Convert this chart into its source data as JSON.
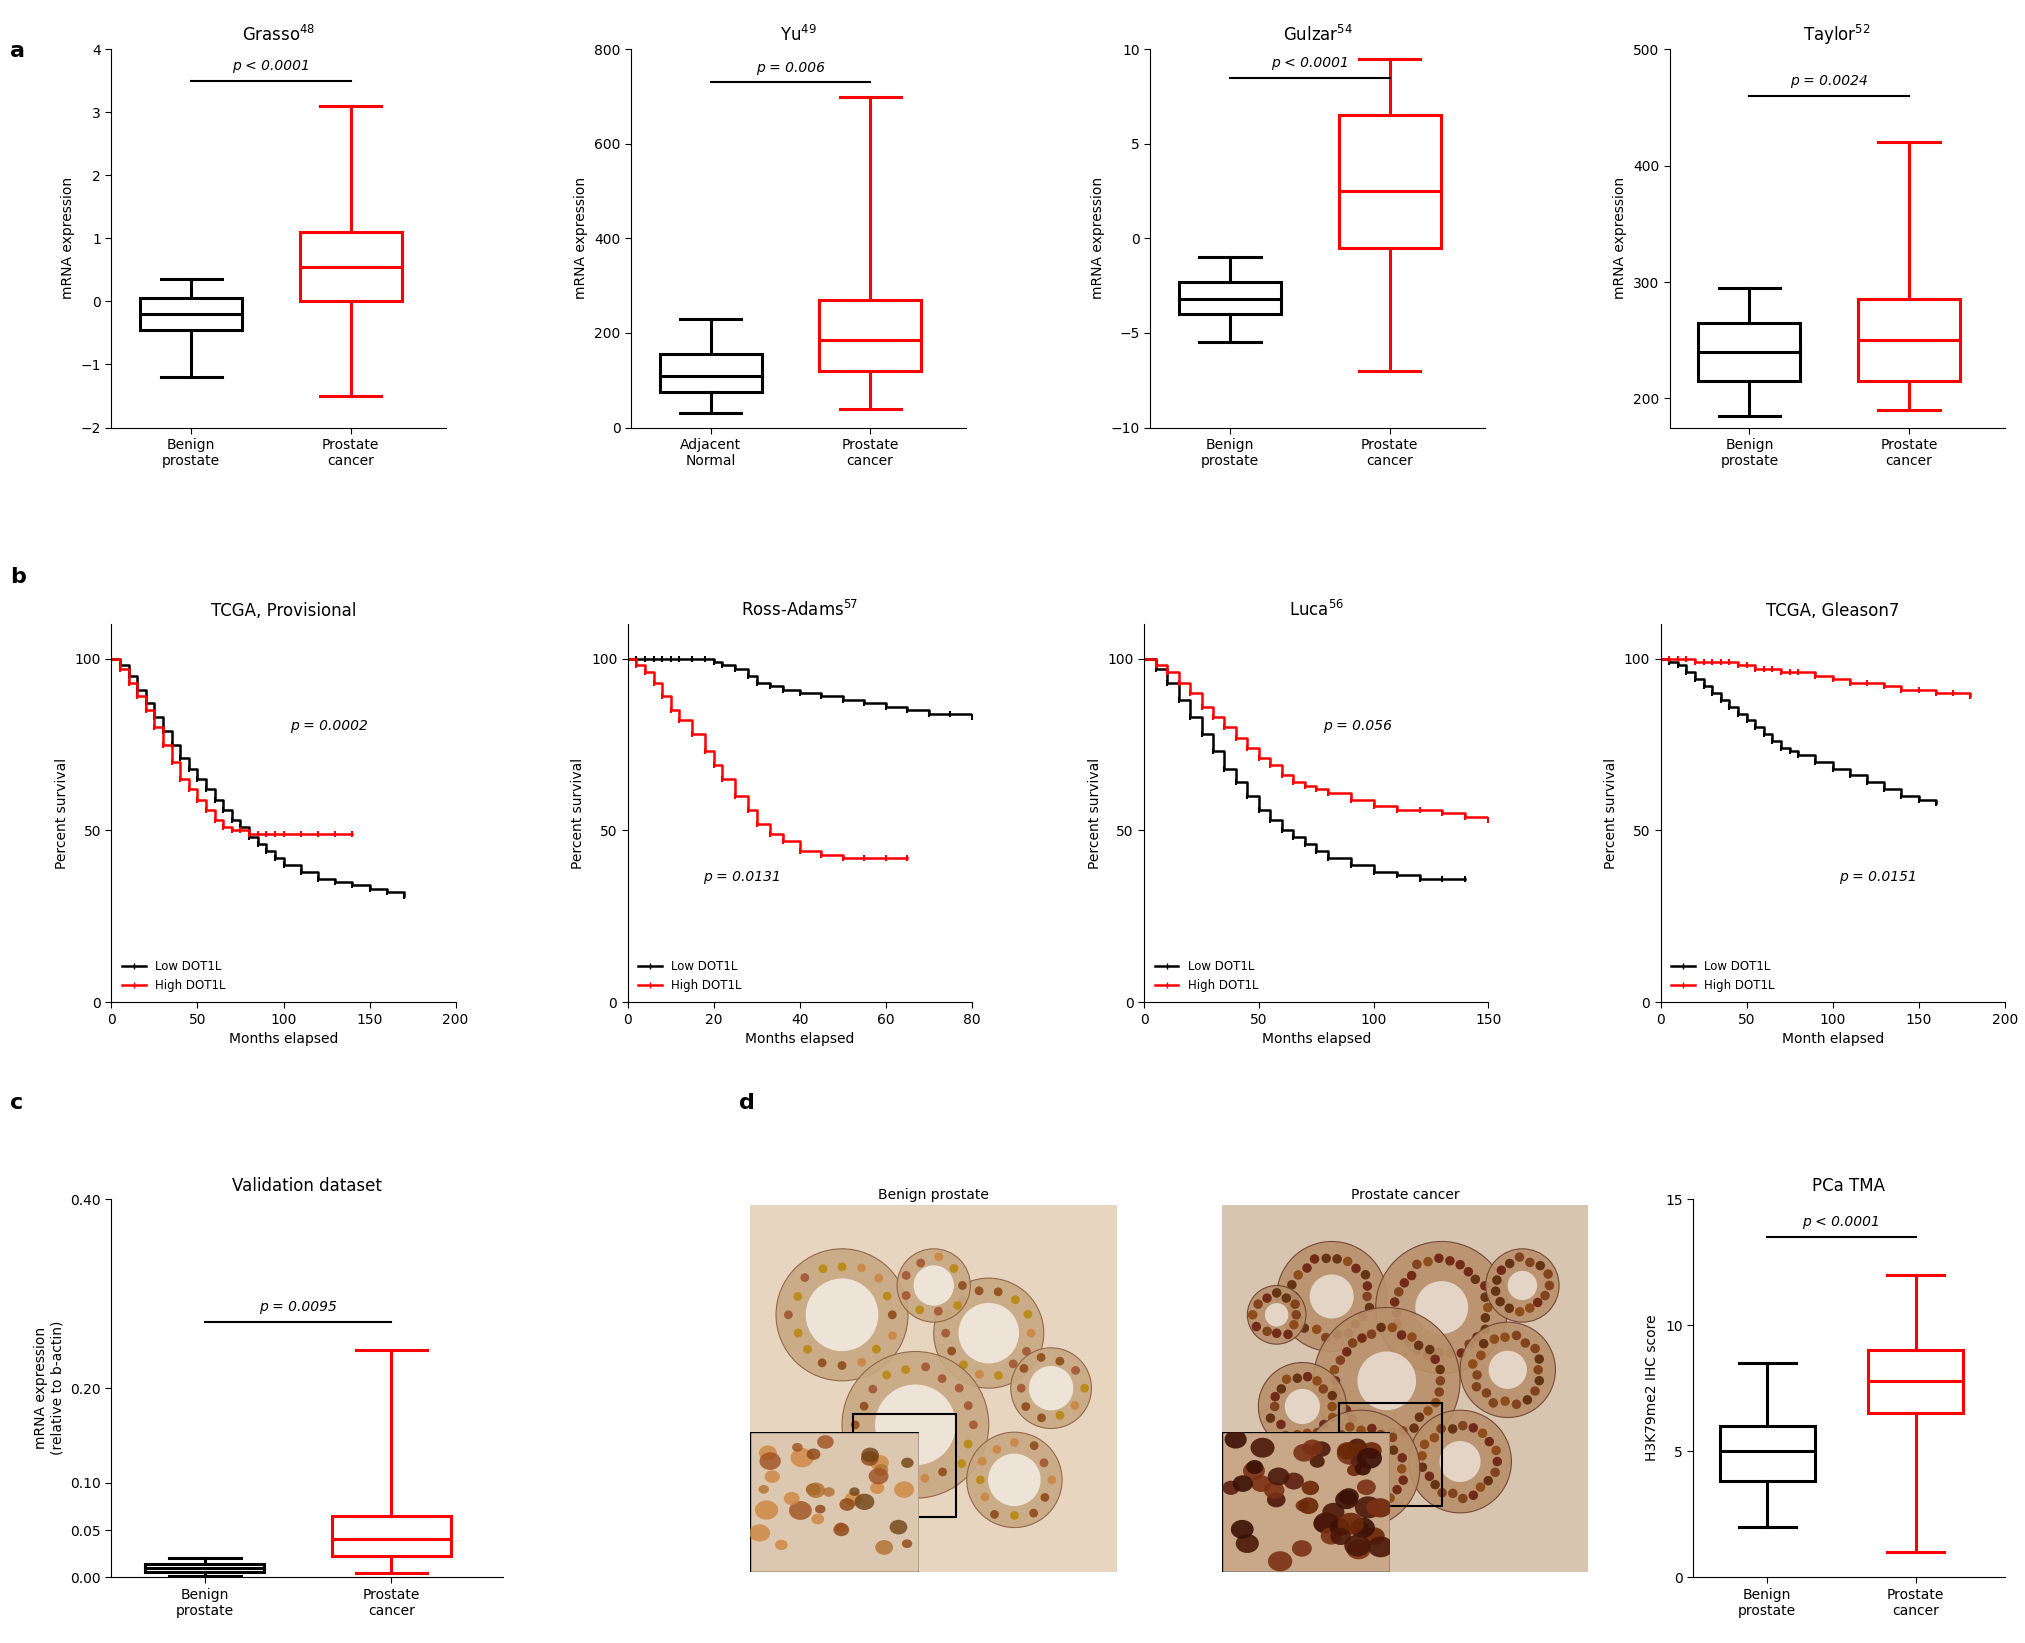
{
  "panel_a": {
    "grasso": {
      "title": "Grasso",
      "title_sup": "48",
      "ylim": [
        -2,
        4
      ],
      "yticks": [
        -2,
        -1,
        0,
        1,
        2,
        3,
        4
      ],
      "ylabel": "mRNA expression",
      "pval": "p < 0.0001",
      "groups": [
        "Benign\nprostate",
        "Prostate\ncancer"
      ],
      "colors": [
        "black",
        "red"
      ],
      "boxes": [
        {
          "q1": -0.45,
          "median": -0.2,
          "q3": 0.05,
          "whislo": -1.2,
          "whishi": 0.35
        },
        {
          "q1": 0.0,
          "median": 0.55,
          "q3": 1.1,
          "whislo": -1.5,
          "whishi": 3.1
        }
      ],
      "sig_y": 3.5
    },
    "yu": {
      "title": "Yu",
      "title_sup": "49",
      "ylim": [
        0,
        800
      ],
      "yticks": [
        0,
        200,
        400,
        600,
        800
      ],
      "ylabel": "mRNA expression",
      "pval": "p = 0.006",
      "groups": [
        "Adjacent\nNormal",
        "Prostate\ncancer"
      ],
      "colors": [
        "black",
        "red"
      ],
      "boxes": [
        {
          "q1": 75,
          "median": 110,
          "q3": 155,
          "whislo": 30,
          "whishi": 230
        },
        {
          "q1": 120,
          "median": 185,
          "q3": 270,
          "whislo": 40,
          "whishi": 700
        }
      ],
      "sig_y": 730
    },
    "gulzar": {
      "title": "Gulzar",
      "title_sup": "54",
      "ylim": [
        -10,
        10
      ],
      "yticks": [
        -10,
        -5,
        0,
        5,
        10
      ],
      "ylabel": "mRNA expression",
      "pval": "p < 0.0001",
      "groups": [
        "Benign\nprostate",
        "Prostate\ncancer"
      ],
      "colors": [
        "black",
        "red"
      ],
      "boxes": [
        {
          "q1": -4.0,
          "median": -3.2,
          "q3": -2.3,
          "whislo": -5.5,
          "whishi": -1.0
        },
        {
          "q1": -0.5,
          "median": 2.5,
          "q3": 6.5,
          "whislo": -7.0,
          "whishi": 9.5
        }
      ],
      "sig_y": 8.5
    },
    "taylor": {
      "title": "Taylor",
      "title_sup": "52",
      "ylim": [
        175,
        500
      ],
      "yticks": [
        200,
        300,
        400,
        500
      ],
      "ylabel": "mRNA expression",
      "pval": "p = 0.0024",
      "groups": [
        "Benign\nprostate",
        "Prostate\ncancer"
      ],
      "colors": [
        "black",
        "red"
      ],
      "boxes": [
        {
          "q1": 215,
          "median": 240,
          "q3": 265,
          "whislo": 185,
          "whishi": 295
        },
        {
          "q1": 215,
          "median": 250,
          "q3": 285,
          "whislo": 190,
          "whishi": 420
        }
      ],
      "sig_y": 460
    }
  },
  "panel_b": {
    "tcga_prov": {
      "title": "TCGA, Provisional",
      "title_sup": "",
      "pval": "p = 0.0002",
      "pval_x": 0.52,
      "pval_y": 0.72,
      "xlim": [
        0,
        200
      ],
      "ylim": [
        0,
        110
      ],
      "xticks": [
        0,
        50,
        100,
        150,
        200
      ],
      "yticks": [
        0,
        50,
        100
      ],
      "xlabel": "Months elapsed",
      "ylabel": "Percent survival",
      "low_dot1l_x": [
        0,
        5,
        10,
        15,
        20,
        25,
        30,
        35,
        40,
        45,
        50,
        55,
        60,
        65,
        70,
        75,
        80,
        85,
        90,
        95,
        100,
        110,
        120,
        130,
        140,
        150,
        160,
        170
      ],
      "low_dot1l_y": [
        100,
        98,
        95,
        91,
        87,
        83,
        79,
        75,
        71,
        68,
        65,
        62,
        59,
        56,
        53,
        51,
        48,
        46,
        44,
        42,
        40,
        38,
        36,
        35,
        34,
        33,
        32,
        31
      ],
      "high_dot1l_x": [
        0,
        5,
        10,
        15,
        20,
        25,
        30,
        35,
        40,
        45,
        50,
        55,
        60,
        65,
        70,
        75,
        80,
        85,
        90,
        95,
        100,
        110,
        120,
        130,
        140
      ],
      "high_dot1l_y": [
        100,
        97,
        93,
        89,
        85,
        80,
        75,
        70,
        65,
        62,
        59,
        56,
        53,
        51,
        50,
        50,
        49,
        49,
        49,
        49,
        49,
        49,
        49,
        49,
        49
      ]
    },
    "ross": {
      "title": "Ross-Adams",
      "title_sup": "57",
      "pval": "p = 0.0131",
      "pval_x": 0.22,
      "pval_y": 0.32,
      "xlim": [
        0,
        80
      ],
      "ylim": [
        0,
        110
      ],
      "xticks": [
        0,
        20,
        40,
        60,
        80
      ],
      "yticks": [
        0,
        50,
        100
      ],
      "xlabel": "Months elapsed",
      "ylabel": "Percent survival",
      "low_dot1l_x": [
        0,
        2,
        4,
        6,
        8,
        10,
        12,
        15,
        18,
        20,
        22,
        25,
        28,
        30,
        33,
        36,
        40,
        45,
        50,
        55,
        60,
        65,
        70,
        75,
        80
      ],
      "low_dot1l_y": [
        100,
        100,
        100,
        100,
        100,
        100,
        100,
        100,
        100,
        99,
        98,
        97,
        95,
        93,
        92,
        91,
        90,
        89,
        88,
        87,
        86,
        85,
        84,
        84,
        83
      ],
      "high_dot1l_x": [
        0,
        2,
        4,
        6,
        8,
        10,
        12,
        15,
        18,
        20,
        22,
        25,
        28,
        30,
        33,
        36,
        40,
        45,
        50,
        55,
        60,
        65
      ],
      "high_dot1l_y": [
        100,
        98,
        96,
        93,
        89,
        85,
        82,
        78,
        73,
        69,
        65,
        60,
        56,
        52,
        49,
        47,
        44,
        43,
        42,
        42,
        42,
        42
      ]
    },
    "luca": {
      "title": "Luca",
      "title_sup": "56",
      "pval": "p = 0.056",
      "pval_x": 0.52,
      "pval_y": 0.72,
      "xlim": [
        0,
        150
      ],
      "ylim": [
        0,
        110
      ],
      "xticks": [
        0,
        50,
        100,
        150
      ],
      "yticks": [
        0,
        50,
        100
      ],
      "xlabel": "Months elapsed",
      "ylabel": "Percent survival",
      "low_dot1l_x": [
        0,
        5,
        10,
        15,
        20,
        25,
        30,
        35,
        40,
        45,
        50,
        55,
        60,
        65,
        70,
        75,
        80,
        90,
        100,
        110,
        120,
        130,
        140
      ],
      "low_dot1l_y": [
        100,
        97,
        93,
        88,
        83,
        78,
        73,
        68,
        64,
        60,
        56,
        53,
        50,
        48,
        46,
        44,
        42,
        40,
        38,
        37,
        36,
        36,
        36
      ],
      "high_dot1l_x": [
        0,
        5,
        10,
        15,
        20,
        25,
        30,
        35,
        40,
        45,
        50,
        55,
        60,
        65,
        70,
        75,
        80,
        90,
        100,
        110,
        120,
        130,
        140,
        150
      ],
      "high_dot1l_y": [
        100,
        98,
        96,
        93,
        90,
        86,
        83,
        80,
        77,
        74,
        71,
        69,
        66,
        64,
        63,
        62,
        61,
        59,
        57,
        56,
        56,
        55,
        54,
        53
      ]
    },
    "tcga_gl7": {
      "title": "TCGA, Gleason7",
      "title_sup": "",
      "pval": "p = 0.0151",
      "pval_x": 0.52,
      "pval_y": 0.32,
      "xlim": [
        0,
        200
      ],
      "ylim": [
        0,
        110
      ],
      "xticks": [
        0,
        50,
        100,
        150,
        200
      ],
      "yticks": [
        0,
        50,
        100
      ],
      "xlabel": "Month elapsed",
      "ylabel": "Percent survival",
      "low_dot1l_x": [
        0,
        5,
        10,
        15,
        20,
        25,
        30,
        35,
        40,
        45,
        50,
        55,
        60,
        65,
        70,
        75,
        80,
        90,
        100,
        110,
        120,
        130,
        140,
        150,
        160
      ],
      "low_dot1l_y": [
        100,
        99,
        98,
        96,
        94,
        92,
        90,
        88,
        86,
        84,
        82,
        80,
        78,
        76,
        74,
        73,
        72,
        70,
        68,
        66,
        64,
        62,
        60,
        59,
        58
      ],
      "high_dot1l_x": [
        0,
        5,
        10,
        15,
        20,
        25,
        30,
        35,
        40,
        45,
        50,
        55,
        60,
        65,
        70,
        75,
        80,
        90,
        100,
        110,
        120,
        130,
        140,
        150,
        160,
        170,
        180
      ],
      "high_dot1l_y": [
        100,
        100,
        100,
        100,
        99,
        99,
        99,
        99,
        99,
        98,
        98,
        97,
        97,
        97,
        96,
        96,
        96,
        95,
        94,
        93,
        93,
        92,
        91,
        91,
        90,
        90,
        89
      ]
    }
  },
  "panel_c": {
    "title": "Validation dataset",
    "ylim": [
      0.0,
      0.4
    ],
    "yticks": [
      0.0,
      0.05,
      0.1,
      0.2,
      0.4
    ],
    "ytick_labels": [
      "0.00",
      "0.05",
      "0.10",
      "0.20",
      "0.40"
    ],
    "ylabel": "mRNA expression\n(relative to b-actin)",
    "pval": "p = 0.0095",
    "groups": [
      "Benign\nprostate",
      "Prostate\ncancer"
    ],
    "colors": [
      "black",
      "red"
    ],
    "boxes": [
      {
        "q1": 0.006,
        "median": 0.01,
        "q3": 0.014,
        "whislo": 0.001,
        "whishi": 0.02
      },
      {
        "q1": 0.022,
        "median": 0.04,
        "q3": 0.065,
        "whislo": 0.005,
        "whishi": 0.24
      }
    ],
    "sig_y": 0.27
  },
  "panel_d_tma": {
    "title": "PCa TMA",
    "ylim": [
      0,
      15
    ],
    "yticks": [
      0,
      5,
      10,
      15
    ],
    "ylabel": "H3K79me2 IHC score",
    "pval": "p < 0.0001",
    "groups": [
      "Benign\nprostate",
      "Prostate\ncancer"
    ],
    "colors": [
      "black",
      "red"
    ],
    "boxes": [
      {
        "q1": 3.8,
        "median": 5.0,
        "q3": 6.0,
        "whislo": 2.0,
        "whishi": 8.5
      },
      {
        "q1": 6.5,
        "median": 7.8,
        "q3": 9.0,
        "whislo": 1.0,
        "whishi": 12.0
      }
    ],
    "sig_y": 13.5
  }
}
